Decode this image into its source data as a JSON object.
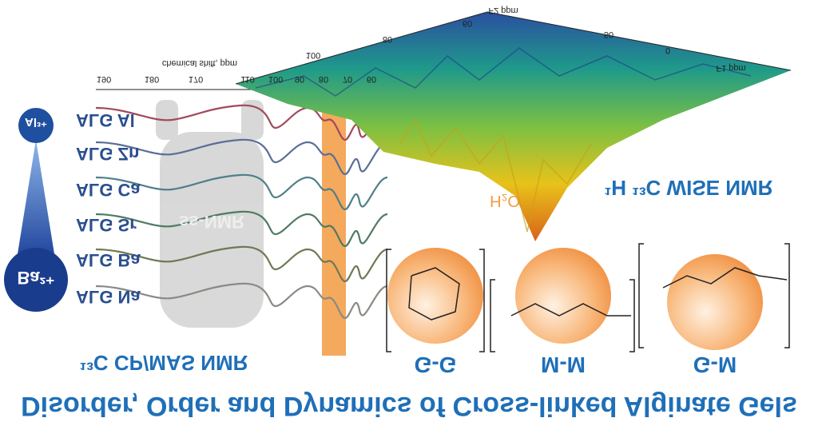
{
  "title": "Disorder, Order and Dynamics of Cross-linked Alginate Gels",
  "cpmas": {
    "title": "¹³C CP/MAS NMR",
    "axis_label": "chemical shift, ppm",
    "ticks": [
      "190",
      "180",
      "170",
      "110",
      "100",
      "90",
      "80",
      "70",
      "60"
    ],
    "samples": [
      "ALG Al",
      "ALG Zn",
      "ALG Ca",
      "ALG Sr",
      "ALG Ba",
      "ALG Na"
    ],
    "rotor": "ss-NMR"
  },
  "ions": {
    "top": "Al³⁺",
    "bottom": "Ba²⁺"
  },
  "wise": {
    "title": "¹H ¹³C WISE NMR",
    "water": "H₂O",
    "f2_label": "F2 ppm",
    "f1_label": "F1 ppm",
    "f2_ticks": [
      "100",
      "80",
      "60"
    ],
    "f1_ticks": [
      "50",
      "0"
    ]
  },
  "blocks": [
    "G-G",
    "M-M",
    "G-M"
  ]
}
